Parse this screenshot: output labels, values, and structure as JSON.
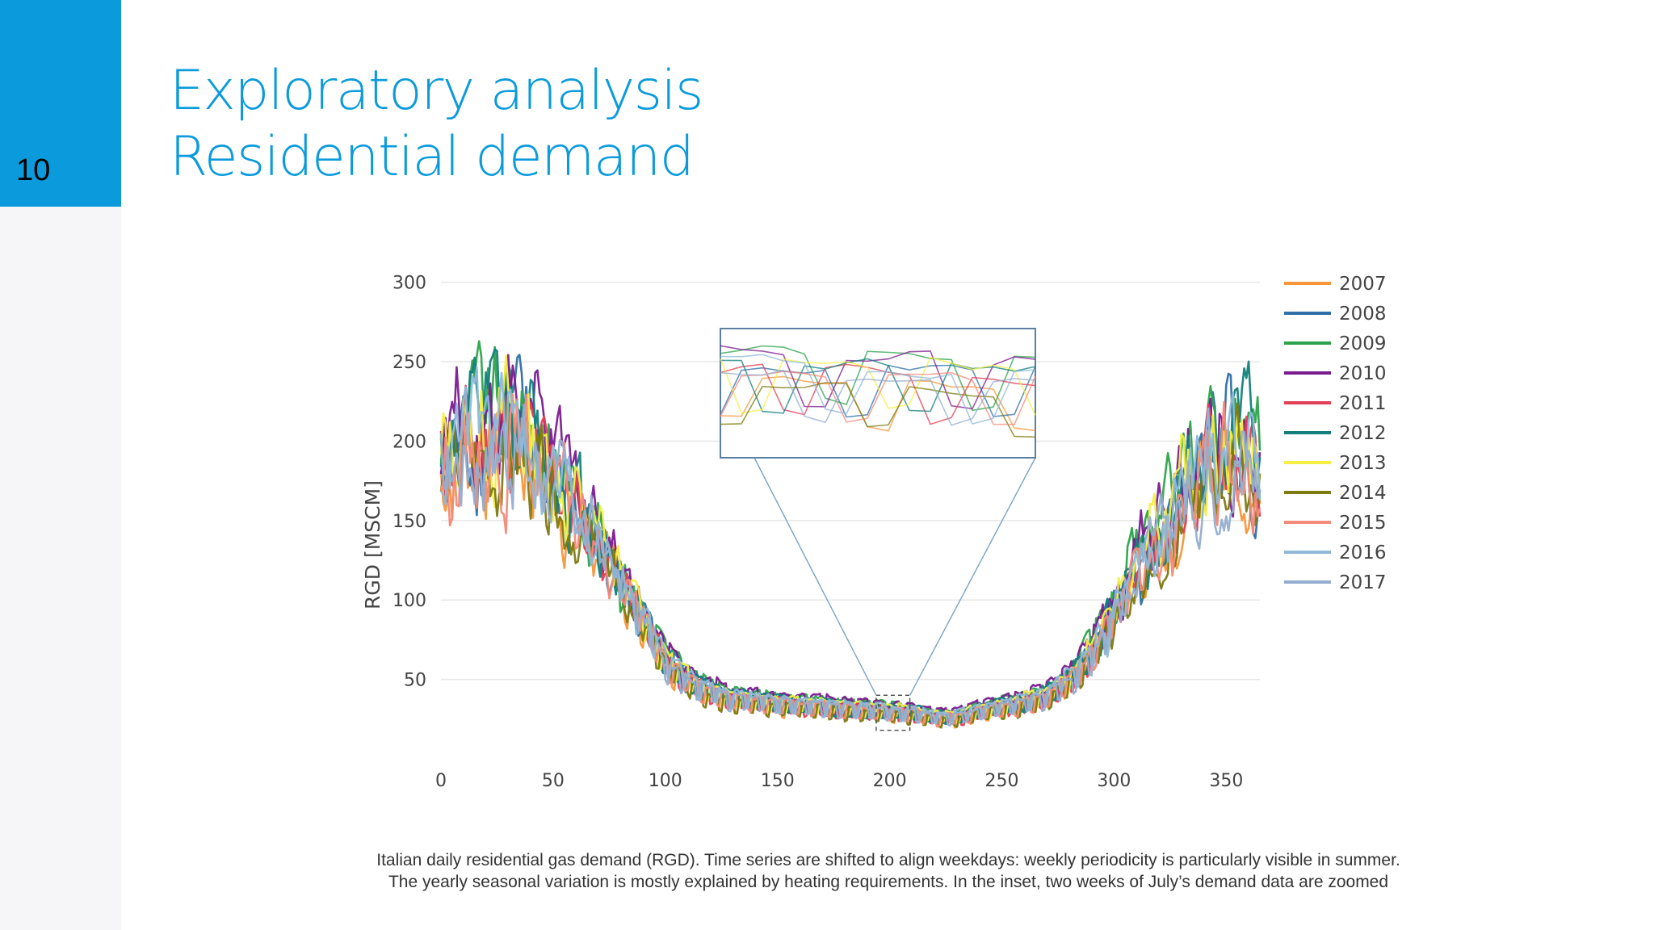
{
  "slide": {
    "number": "10",
    "title_line1": "Exploratory analysis",
    "title_line2": "Residential demand"
  },
  "caption": {
    "line1": "Italian daily residential gas demand (RGD). Time series are shifted to align weekdays: weekly periodicity is particularly visible in summer.",
    "line2": "The yearly seasonal variation is mostly explained by heating requirements. In the inset, two weeks of July’s demand data are zoomed"
  },
  "chart_data": {
    "type": "line",
    "ylabel": "RGD [MSCM]",
    "xlabel": "",
    "xlim": [
      0,
      365
    ],
    "ylim": [
      0,
      310
    ],
    "xticks": [
      0,
      50,
      100,
      150,
      200,
      250,
      300,
      350
    ],
    "yticks": [
      50,
      100,
      150,
      200,
      250,
      300
    ],
    "grid": true,
    "legend_position": "right",
    "inset": {
      "x_range": [
        194,
        209
      ],
      "y_range": [
        18,
        40
      ]
    },
    "profile": [
      [
        0,
        185
      ],
      [
        10,
        195
      ],
      [
        20,
        200
      ],
      [
        30,
        205
      ],
      [
        40,
        195
      ],
      [
        50,
        175
      ],
      [
        60,
        160
      ],
      [
        70,
        140
      ],
      [
        80,
        115
      ],
      [
        90,
        90
      ],
      [
        100,
        65
      ],
      [
        110,
        52
      ],
      [
        120,
        45
      ],
      [
        130,
        41
      ],
      [
        140,
        39
      ],
      [
        150,
        37
      ],
      [
        160,
        36
      ],
      [
        170,
        35
      ],
      [
        180,
        34
      ],
      [
        190,
        33
      ],
      [
        200,
        32
      ],
      [
        210,
        31
      ],
      [
        220,
        28
      ],
      [
        230,
        28
      ],
      [
        240,
        32
      ],
      [
        250,
        35
      ],
      [
        260,
        38
      ],
      [
        270,
        42
      ],
      [
        280,
        52
      ],
      [
        290,
        70
      ],
      [
        300,
        95
      ],
      [
        310,
        120
      ],
      [
        320,
        140
      ],
      [
        330,
        160
      ],
      [
        340,
        180
      ],
      [
        350,
        200
      ],
      [
        360,
        190
      ],
      [
        365,
        175
      ]
    ],
    "series": [
      {
        "name": "2007",
        "color": "#f7953a",
        "scale": 0.96,
        "seed": 7
      },
      {
        "name": "2008",
        "color": "#2e6fa8",
        "scale": 1.02,
        "seed": 8
      },
      {
        "name": "2009",
        "color": "#2ca34a",
        "scale": 1.08,
        "seed": 9
      },
      {
        "name": "2010",
        "color": "#7b1b8f",
        "scale": 1.1,
        "seed": 10
      },
      {
        "name": "2011",
        "color": "#e03f56",
        "scale": 1.0,
        "seed": 11
      },
      {
        "name": "2012",
        "color": "#127f7c",
        "scale": 1.05,
        "seed": 12
      },
      {
        "name": "2013",
        "color": "#f5ef45",
        "scale": 1.04,
        "seed": 13
      },
      {
        "name": "2014",
        "color": "#7d7a10",
        "scale": 0.93,
        "seed": 14
      },
      {
        "name": "2015",
        "color": "#f38a7a",
        "scale": 0.98,
        "seed": 15
      },
      {
        "name": "2016",
        "color": "#8fb8d9",
        "scale": 1.03,
        "seed": 16
      },
      {
        "name": "2017",
        "color": "#94aecf",
        "scale": 0.99,
        "seed": 17
      }
    ]
  }
}
